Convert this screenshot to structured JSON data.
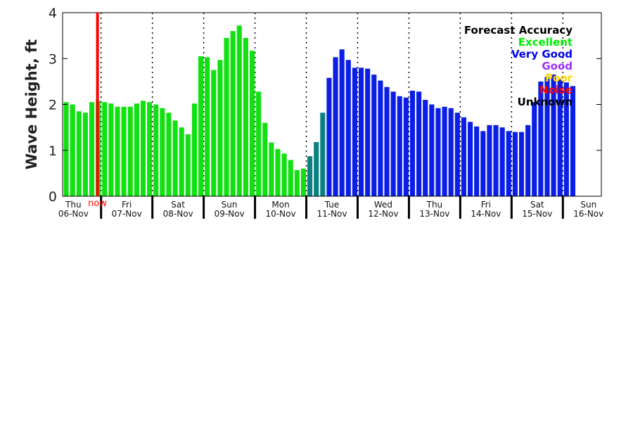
{
  "chart_data": {
    "type": "bar",
    "ylabel": "Wave Height, ft",
    "ylim": [
      0,
      4
    ],
    "yticks": [
      "0",
      "1",
      "2",
      "3",
      "4"
    ],
    "x_start": "Thu 06-Nov 00:00",
    "bar_interval_hours": 3,
    "days": [
      {
        "dow": "Thu",
        "date": "06-Nov"
      },
      {
        "dow": "Fri",
        "date": "07-Nov"
      },
      {
        "dow": "Sat",
        "date": "08-Nov"
      },
      {
        "dow": "Sun",
        "date": "09-Nov"
      },
      {
        "dow": "Mon",
        "date": "10-Nov"
      },
      {
        "dow": "Tue",
        "date": "11-Nov"
      },
      {
        "dow": "Wed",
        "date": "12-Nov"
      },
      {
        "dow": "Thu",
        "date": "13-Nov"
      },
      {
        "dow": "Fri",
        "date": "14-Nov"
      },
      {
        "dow": "Sat",
        "date": "15-Nov"
      },
      {
        "dow": "Sun",
        "date": "16-Nov"
      }
    ],
    "now_label": "now",
    "now_hours": 15,
    "values": [
      2.05,
      2.0,
      1.85,
      1.82,
      2.05,
      2.08,
      2.05,
      2.02,
      1.95,
      1.95,
      1.95,
      2.02,
      2.08,
      2.05,
      2.0,
      1.92,
      1.82,
      1.65,
      1.5,
      1.35,
      2.02,
      3.05,
      3.03,
      2.75,
      2.97,
      3.45,
      3.6,
      3.72,
      3.45,
      3.17,
      2.28,
      1.6,
      1.17,
      1.03,
      0.93,
      0.79,
      0.57,
      0.6,
      0.87,
      1.18,
      1.82,
      2.58,
      3.03,
      3.2,
      2.97,
      2.8,
      2.8,
      2.78,
      2.65,
      2.52,
      2.38,
      2.28,
      2.18,
      2.15,
      2.3,
      2.28,
      2.1,
      2.0,
      1.92,
      1.95,
      1.92,
      1.82,
      1.72,
      1.62,
      1.52,
      1.42,
      1.55,
      1.55,
      1.5,
      1.42,
      1.4,
      1.4,
      1.55,
      2.05,
      2.5,
      2.6,
      2.65,
      2.55,
      2.48,
      2.4
    ],
    "accuracy": [
      "Excellent",
      "Excellent",
      "Excellent",
      "Excellent",
      "Excellent",
      "Excellent",
      "Excellent",
      "Excellent",
      "Excellent",
      "Excellent",
      "Excellent",
      "Excellent",
      "Excellent",
      "Excellent",
      "Excellent",
      "Excellent",
      "Excellent",
      "Excellent",
      "Excellent",
      "Excellent",
      "Excellent",
      "Excellent",
      "Excellent",
      "Excellent",
      "Excellent",
      "Excellent",
      "Excellent",
      "Excellent",
      "Excellent",
      "Excellent",
      "Excellent",
      "Excellent",
      "Excellent",
      "Excellent",
      "Excellent",
      "Excellent",
      "Excellent",
      "Excellent",
      "Excellent-Very Good",
      "Excellent-Very Good",
      "Excellent-Very Good",
      "Very Good",
      "Very Good",
      "Very Good",
      "Very Good",
      "Very Good",
      "Very Good",
      "Very Good",
      "Very Good",
      "Very Good",
      "Very Good",
      "Very Good",
      "Very Good",
      "Very Good",
      "Very Good",
      "Very Good",
      "Very Good",
      "Very Good",
      "Very Good",
      "Very Good",
      "Very Good",
      "Very Good",
      "Very Good",
      "Very Good",
      "Very Good",
      "Very Good",
      "Very Good",
      "Very Good",
      "Very Good",
      "Very Good",
      "Very Good",
      "Very Good",
      "Very Good",
      "Very Good",
      "Very Good",
      "Very Good",
      "Very Good",
      "Very Good",
      "Very Good",
      "Very Good"
    ],
    "legend": {
      "title": "Forecast Accuracy",
      "placement": "top-right",
      "entries": [
        {
          "label": "Excellent",
          "color": "#00ee00"
        },
        {
          "label": "Very Good",
          "color": "#0000ee"
        },
        {
          "label": "Good",
          "color": "#9b30ff"
        },
        {
          "label": "Poor",
          "color": "#ffd700"
        },
        {
          "label": "Noise",
          "color": "#ff0000"
        },
        {
          "label": "Unknown",
          "color": "#000000"
        }
      ]
    },
    "colors": {
      "Excellent": "#11e011",
      "Excellent-Very Good": "#0a8080",
      "Very Good": "#0a1ee6",
      "now_line": "#ff0000",
      "title": "#000000"
    }
  }
}
